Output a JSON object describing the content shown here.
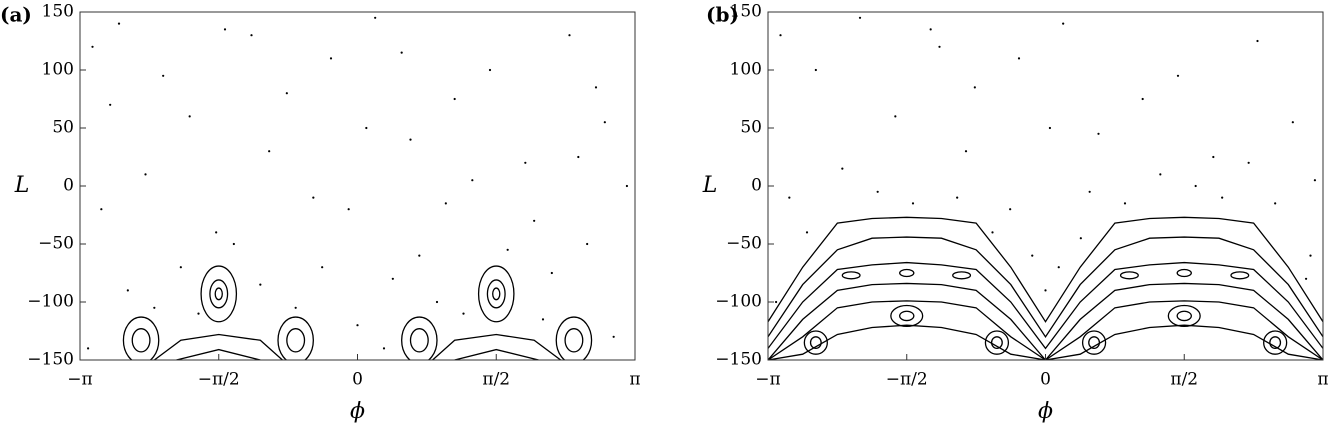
{
  "chart_data": [
    {
      "type": "scatter",
      "panel_label": "(a)",
      "xlabel": "ϕ",
      "ylabel": "L",
      "color": "#000000",
      "xlim": [
        -3.14159,
        3.14159
      ],
      "ylim": [
        -150,
        150
      ],
      "xticks": [
        {
          "value": -3.14159,
          "label": "−π"
        },
        {
          "value": -1.5708,
          "label": "−π/2"
        },
        0,
        {
          "value": 1.5708,
          "label": "π/2"
        },
        {
          "value": 3.14159,
          "label": "π"
        }
      ],
      "yticks": [
        {
          "value": -150,
          "label": "−150"
        },
        {
          "value": -100,
          "label": "−100"
        },
        {
          "value": -50,
          "label": "−50"
        },
        0,
        50,
        100,
        150
      ],
      "x": [
        -3.0,
        -2.7,
        -2.2,
        -1.9,
        -1.2,
        -0.8,
        -0.3,
        0.2,
        0.6,
        1.1,
        1.5,
        1.9,
        2.4,
        2.8,
        3.05,
        -2.9,
        -2.4,
        -1.6,
        -1.0,
        -0.5,
        0.1,
        0.7,
        1.3,
        2.0,
        2.6,
        -2.6,
        -2.0,
        -1.4,
        -0.7,
        0.0,
        0.4,
        0.9,
        1.7,
        2.2,
        2.9,
        -3.05,
        -1.8,
        -0.1,
        1.0,
        2.5,
        -2.3,
        -1.1,
        0.3,
        1.2,
        2.7,
        -0.4,
        0.5,
        -2.8,
        2.1,
        -1.5
      ],
      "y": [
        120,
        140,
        95,
        60,
        130,
        80,
        110,
        145,
        40,
        75,
        100,
        20,
        130,
        55,
        0,
        -20,
        10,
        -40,
        30,
        -10,
        50,
        -60,
        5,
        -30,
        -50,
        -90,
        -70,
        -50,
        -105,
        -120,
        -80,
        -100,
        -55,
        -75,
        -130,
        -140,
        -110,
        -20,
        -15,
        25,
        -105,
        -85,
        -140,
        -110,
        85,
        -70,
        115,
        70,
        -115,
        135
      ],
      "lines": [
        {
          "x": [
            -2.3,
            -2.0,
            -1.5708,
            -1.1,
            -0.85
          ],
          "y": [
            -150,
            -133,
            -128,
            -133,
            -150
          ]
        },
        {
          "x": [
            -2.05,
            -1.5708,
            -1.1
          ],
          "y": [
            -150,
            -141,
            -150
          ]
        },
        {
          "x": [
            0.85,
            1.1,
            1.5708,
            2.0,
            2.3
          ],
          "y": [
            -150,
            -133,
            -128,
            -133,
            -150
          ]
        },
        {
          "x": [
            1.1,
            1.5708,
            2.05
          ],
          "y": [
            -150,
            -141,
            -150
          ]
        }
      ],
      "islands": [
        {
          "x": -1.5708,
          "y": -93,
          "rx": 0.04,
          "ry": 5
        },
        {
          "x": -1.5708,
          "y": -93,
          "rx": 0.1,
          "ry": 12
        },
        {
          "x": -1.5708,
          "y": -93,
          "rx": 0.2,
          "ry": 24
        },
        {
          "x": 1.5708,
          "y": -93,
          "rx": 0.04,
          "ry": 5
        },
        {
          "x": 1.5708,
          "y": -93,
          "rx": 0.1,
          "ry": 12
        },
        {
          "x": 1.5708,
          "y": -93,
          "rx": 0.2,
          "ry": 24
        },
        {
          "x": -2.45,
          "y": -133,
          "rx": 0.1,
          "ry": 10
        },
        {
          "x": -2.45,
          "y": -133,
          "rx": 0.2,
          "ry": 20
        },
        {
          "x": -0.7,
          "y": -133,
          "rx": 0.1,
          "ry": 10
        },
        {
          "x": -0.7,
          "y": -133,
          "rx": 0.2,
          "ry": 20
        },
        {
          "x": 0.7,
          "y": -133,
          "rx": 0.1,
          "ry": 10
        },
        {
          "x": 0.7,
          "y": -133,
          "rx": 0.2,
          "ry": 20
        },
        {
          "x": 2.45,
          "y": -133,
          "rx": 0.1,
          "ry": 10
        },
        {
          "x": 2.45,
          "y": -133,
          "rx": 0.2,
          "ry": 20
        }
      ]
    },
    {
      "type": "scatter",
      "panel_label": "(b)",
      "xlabel": "ϕ",
      "ylabel": "L",
      "color": "#000000",
      "xlim": [
        -3.14159,
        3.14159
      ],
      "ylim": [
        -150,
        150
      ],
      "xticks": [
        {
          "value": -3.14159,
          "label": "−π"
        },
        {
          "value": -1.5708,
          "label": "−π/2"
        },
        0,
        {
          "value": 1.5708,
          "label": "π/2"
        },
        {
          "value": 3.14159,
          "label": "π"
        }
      ],
      "yticks": [
        {
          "value": -150,
          "label": "−150"
        },
        {
          "value": -100,
          "label": "−100"
        },
        {
          "value": -50,
          "label": "−50"
        },
        0,
        50,
        100,
        150
      ],
      "x": [
        -3.0,
        -2.6,
        -2.1,
        -1.7,
        -1.2,
        -0.8,
        -0.3,
        0.2,
        0.6,
        1.1,
        1.5,
        1.9,
        2.4,
        2.8,
        3.05,
        -2.9,
        -2.3,
        -1.5,
        -0.9,
        -0.4,
        0.05,
        0.5,
        1.3,
        2.0,
        2.6,
        -2.7,
        -1.9,
        -1.0,
        0.0,
        -0.15,
        0.15,
        0.9,
        1.7,
        2.3,
        2.95,
        -3.05,
        -0.6,
        0.4,
        3.0,
        -1.3
      ],
      "y": [
        130,
        100,
        145,
        60,
        120,
        85,
        110,
        140,
        45,
        75,
        95,
        25,
        125,
        55,
        5,
        -10,
        15,
        -15,
        30,
        -20,
        50,
        -5,
        10,
        -10,
        -15,
        -40,
        -5,
        -10,
        -90,
        -60,
        -70,
        -15,
        0,
        20,
        -80,
        -100,
        -40,
        -45,
        -60,
        135
      ],
      "lines": [
        {
          "x": [
            -3.14159,
            -2.7489,
            -2.3562,
            -1.9635,
            -1.5708,
            -1.1781,
            -0.7854,
            -0.3927,
            0,
            0.3927,
            0.7854,
            1.1781,
            1.5708,
            1.9635,
            2.3562,
            2.7489,
            3.14159
          ],
          "y": [
            -117,
            -70,
            -32,
            -28,
            -27,
            -28,
            -32,
            -70,
            -117,
            -70,
            -32,
            -28,
            -27,
            -28,
            -32,
            -70,
            -117
          ]
        },
        {
          "x": [
            -3.14159,
            -2.7489,
            -2.3562,
            -1.9635,
            -1.5708,
            -1.1781,
            -0.7854,
            -0.3927,
            0,
            0.3927,
            0.7854,
            1.1781,
            1.5708,
            1.9635,
            2.3562,
            2.7489,
            3.14159
          ],
          "y": [
            -130,
            -85,
            -55,
            -45,
            -44,
            -45,
            -55,
            -85,
            -130,
            -85,
            -55,
            -45,
            -44,
            -45,
            -55,
            -85,
            -130
          ]
        },
        {
          "x": [
            -3.14159,
            -2.7489,
            -2.3562,
            -1.9635,
            -1.5708,
            -1.1781,
            -0.7854,
            -0.3927,
            0,
            0.3927,
            0.7854,
            1.1781,
            1.5708,
            1.9635,
            2.3562,
            2.7489,
            3.14159
          ],
          "y": [
            -140,
            -100,
            -72,
            -68,
            -66,
            -68,
            -72,
            -100,
            -140,
            -100,
            -72,
            -68,
            -66,
            -68,
            -72,
            -100,
            -140
          ]
        },
        {
          "x": [
            -3.14159,
            -2.7489,
            -2.3562,
            -1.9635,
            -1.5708,
            -1.1781,
            -0.7854,
            -0.3927,
            0,
            0.3927,
            0.7854,
            1.1781,
            1.5708,
            1.9635,
            2.3562,
            2.7489,
            3.14159
          ],
          "y": [
            -150,
            -115,
            -90,
            -85,
            -84,
            -85,
            -90,
            -115,
            -150,
            -115,
            -90,
            -85,
            -84,
            -85,
            -90,
            -115,
            -150
          ]
        },
        {
          "x": [
            -3.14159,
            -2.7489,
            -2.3562,
            -1.9635,
            -1.5708,
            -1.1781,
            -0.7854,
            -0.3927,
            0,
            0.3927,
            0.7854,
            1.1781,
            1.5708,
            1.9635,
            2.3562,
            2.7489,
            3.14159
          ],
          "y": [
            -150,
            -130,
            -105,
            -100,
            -99,
            -100,
            -105,
            -130,
            -150,
            -130,
            -105,
            -100,
            -99,
            -100,
            -105,
            -130,
            -150
          ]
        },
        {
          "x": [
            -3.14159,
            -2.7489,
            -2.3562,
            -1.9635,
            -1.5708,
            -1.1781,
            -0.7854,
            -0.3927,
            0,
            0.3927,
            0.7854,
            1.1781,
            1.5708,
            1.9635,
            2.3562,
            2.7489,
            3.14159
          ],
          "y": [
            -150,
            -145,
            -128,
            -122,
            -120,
            -122,
            -128,
            -145,
            -150,
            -145,
            -128,
            -122,
            -120,
            -122,
            -128,
            -145,
            -150
          ]
        }
      ],
      "islands": [
        {
          "x": -1.5708,
          "y": -112,
          "rx": 0.08,
          "ry": 4
        },
        {
          "x": -1.5708,
          "y": -112,
          "rx": 0.18,
          "ry": 9
        },
        {
          "x": 1.5708,
          "y": -112,
          "rx": 0.08,
          "ry": 4
        },
        {
          "x": 1.5708,
          "y": -112,
          "rx": 0.18,
          "ry": 9
        },
        {
          "x": -1.5708,
          "y": -75,
          "rx": 0.08,
          "ry": 3
        },
        {
          "x": -2.2,
          "y": -77,
          "rx": 0.1,
          "ry": 3
        },
        {
          "x": -0.95,
          "y": -77,
          "rx": 0.1,
          "ry": 3
        },
        {
          "x": 1.5708,
          "y": -75,
          "rx": 0.08,
          "ry": 3
        },
        {
          "x": 2.2,
          "y": -77,
          "rx": 0.1,
          "ry": 3
        },
        {
          "x": 0.95,
          "y": -77,
          "rx": 0.1,
          "ry": 3
        },
        {
          "x": -2.6,
          "y": -135,
          "rx": 0.06,
          "ry": 5
        },
        {
          "x": -2.6,
          "y": -135,
          "rx": 0.13,
          "ry": 10
        },
        {
          "x": -0.55,
          "y": -135,
          "rx": 0.06,
          "ry": 5
        },
        {
          "x": -0.55,
          "y": -135,
          "rx": 0.13,
          "ry": 10
        },
        {
          "x": 0.55,
          "y": -135,
          "rx": 0.06,
          "ry": 5
        },
        {
          "x": 0.55,
          "y": -135,
          "rx": 0.13,
          "ry": 10
        },
        {
          "x": 2.6,
          "y": -135,
          "rx": 0.06,
          "ry": 5
        },
        {
          "x": 2.6,
          "y": -135,
          "rx": 0.13,
          "ry": 10
        }
      ]
    }
  ]
}
